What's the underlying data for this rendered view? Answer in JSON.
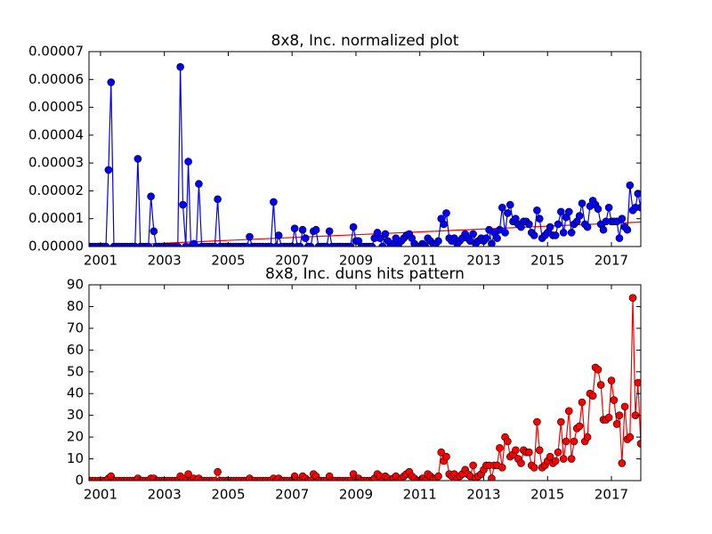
{
  "chart_data": [
    {
      "type": "line",
      "title": "8x8, Inc. normalized plot",
      "color": "#0000ff",
      "markers": true,
      "x": [
        2000.67,
        2000.75,
        2000.83,
        2000.92,
        2001,
        2001.08,
        2001.17,
        2001.25,
        2001.33,
        2001.42,
        2001.5,
        2001.58,
        2001.67,
        2001.75,
        2001.83,
        2001.92,
        2002,
        2002.08,
        2002.17,
        2002.25,
        2002.33,
        2002.42,
        2002.5,
        2002.58,
        2002.67,
        2002.75,
        2002.83,
        2002.92,
        2003,
        2003.08,
        2003.17,
        2003.25,
        2003.33,
        2003.42,
        2003.5,
        2003.58,
        2003.67,
        2003.75,
        2003.83,
        2003.92,
        2004,
        2004.08,
        2004.17,
        2004.25,
        2004.33,
        2004.42,
        2004.5,
        2004.58,
        2004.67,
        2004.75,
        2004.83,
        2004.92,
        2005,
        2005.08,
        2005.17,
        2005.25,
        2005.33,
        2005.42,
        2005.5,
        2005.58,
        2005.67,
        2005.75,
        2005.83,
        2005.92,
        2006,
        2006.08,
        2006.17,
        2006.25,
        2006.33,
        2006.42,
        2006.5,
        2006.58,
        2006.67,
        2006.75,
        2006.83,
        2006.92,
        2007,
        2007.08,
        2007.17,
        2007.25,
        2007.33,
        2007.42,
        2007.5,
        2007.58,
        2007.67,
        2007.75,
        2007.83,
        2007.92,
        2008,
        2008.08,
        2008.17,
        2008.25,
        2008.33,
        2008.42,
        2008.5,
        2008.58,
        2008.67,
        2008.75,
        2008.83,
        2008.92,
        2009,
        2009.08,
        2009.17,
        2009.25,
        2009.33,
        2009.42,
        2009.5,
        2009.58,
        2009.67,
        2009.75,
        2009.83,
        2009.92,
        2010,
        2010.08,
        2010.17,
        2010.25,
        2010.33,
        2010.42,
        2010.5,
        2010.58,
        2010.67,
        2010.75,
        2010.83,
        2010.92,
        2011,
        2011.08,
        2011.17,
        2011.25,
        2011.33,
        2011.42,
        2011.5,
        2011.58,
        2011.67,
        2011.75,
        2011.83,
        2011.92,
        2012,
        2012.08,
        2012.17,
        2012.25,
        2012.33,
        2012.42,
        2012.5,
        2012.58,
        2012.67,
        2012.75,
        2012.83,
        2012.92,
        2013,
        2013.08,
        2013.17,
        2013.25,
        2013.33,
        2013.42,
        2013.5,
        2013.58,
        2013.67,
        2013.75,
        2013.83,
        2013.92,
        2014,
        2014.08,
        2014.17,
        2014.25,
        2014.33,
        2014.42,
        2014.5,
        2014.58,
        2014.67,
        2014.75,
        2014.83,
        2014.92,
        2015,
        2015.08,
        2015.17,
        2015.25,
        2015.33,
        2015.42,
        2015.5,
        2015.58,
        2015.67,
        2015.75,
        2015.83,
        2015.92,
        2016,
        2016.08,
        2016.17,
        2016.25,
        2016.33,
        2016.42,
        2016.5,
        2016.58,
        2016.67,
        2016.75,
        2016.83,
        2016.92,
        2017,
        2017.08,
        2017.17,
        2017.25,
        2017.33,
        2017.42,
        2017.5,
        2017.58,
        2017.67,
        2017.75,
        2017.83,
        2017.92
      ],
      "values": [
        0,
        0,
        0,
        0,
        0,
        0,
        0,
        2.75e-05,
        5.9e-05,
        0,
        0,
        0,
        0,
        0,
        0,
        0,
        0,
        0,
        3.15e-05,
        0,
        0,
        0,
        0,
        1.8e-05,
        5.5e-06,
        0,
        0,
        0,
        0,
        0,
        0,
        0,
        0,
        0,
        6.45e-05,
        1.5e-05,
        0,
        3.05e-05,
        0,
        1e-06,
        0,
        2.25e-05,
        0,
        0,
        0,
        0,
        0,
        0,
        1.7e-05,
        0,
        0,
        0,
        0,
        0,
        0,
        0,
        0,
        0,
        0,
        0,
        3.5e-06,
        0,
        0,
        0,
        0,
        0,
        0,
        0,
        0,
        1.6e-05,
        0,
        4e-06,
        0,
        0,
        0,
        0,
        0,
        6.5e-06,
        0,
        0,
        6e-06,
        3e-06,
        0,
        0,
        5.5e-06,
        6e-06,
        0,
        0,
        0,
        0,
        5.5e-06,
        0,
        0,
        0,
        0,
        0,
        0,
        0,
        0,
        7e-06,
        2e-06,
        2e-06,
        0,
        0,
        0,
        0,
        0,
        3e-06,
        5e-06,
        3e-06,
        0,
        4.5e-06,
        2e-06,
        0,
        1e-06,
        3e-06,
        0,
        2e-06,
        3e-06,
        4e-06,
        4.5e-06,
        3e-06,
        1e-06,
        0,
        0,
        1e-06,
        0,
        3e-06,
        2e-06,
        1e-06,
        1e-06,
        2e-06,
        1e-05,
        8e-06,
        1.2e-05,
        3e-06,
        2e-06,
        3e-06,
        1e-06,
        2e-06,
        3e-06,
        4.5e-06,
        3e-06,
        2e-06,
        4.5e-06,
        1e-06,
        2e-06,
        3e-06,
        2e-06,
        3e-06,
        6e-06,
        1e-06,
        5e-06,
        3e-06,
        6e-06,
        1.4e-05,
        5e-06,
        1.2e-05,
        1.5e-05,
        9e-06,
        1e-05,
        8e-06,
        7e-06,
        9e-06,
        9e-06,
        8e-06,
        5e-06,
        4e-06,
        1.3e-05,
        1e-05,
        3e-06,
        4e-06,
        5e-06,
        7e-06,
        4e-06,
        4e-06,
        8e-06,
        1.25e-05,
        5e-06,
        1.05e-05,
        1.25e-05,
        5e-06,
        8e-06,
        9e-06,
        1.1e-05,
        1.55e-05,
        8e-06,
        7e-06,
        1.45e-05,
        1.65e-05,
        1.5e-05,
        1.35e-05,
        8e-06,
        6e-06,
        9e-06,
        1.4e-05,
        9e-06,
        9e-06,
        9e-06,
        3e-06,
        1e-05,
        7e-06,
        6e-06,
        2.2e-05,
        1.3e-05,
        1.4e-05,
        1.9e-05,
        1.4e-05
      ],
      "trend": {
        "color": "#ff0000",
        "x": [
          2000.67,
          2017.92
        ],
        "values": [
          0,
          8.8e-06
        ]
      },
      "xlim": [
        2000.64,
        2017.92
      ],
      "xticks": [
        2001,
        2003,
        2005,
        2007,
        2009,
        2011,
        2013,
        2015,
        2017
      ],
      "ylim": [
        0,
        7e-05
      ],
      "yticks": [
        {
          "value": 0,
          "label": "0.00000"
        },
        {
          "value": 1e-05,
          "label": "0.00001"
        },
        {
          "value": 2e-05,
          "label": "0.00002"
        },
        {
          "value": 3e-05,
          "label": "0.00003"
        },
        {
          "value": 4e-05,
          "label": "0.00004"
        },
        {
          "value": 5e-05,
          "label": "0.00005"
        },
        {
          "value": 6e-05,
          "label": "0.00006"
        },
        {
          "value": 7e-05,
          "label": "0.00007"
        }
      ]
    },
    {
      "type": "line",
      "title": "8x8, Inc. duns hits pattern",
      "color": "#ff0000",
      "markers": true,
      "x": [
        2000.67,
        2000.75,
        2000.83,
        2000.92,
        2001,
        2001.08,
        2001.17,
        2001.25,
        2001.33,
        2001.42,
        2001.5,
        2001.58,
        2001.67,
        2001.75,
        2001.83,
        2001.92,
        2002,
        2002.08,
        2002.17,
        2002.25,
        2002.33,
        2002.42,
        2002.5,
        2002.58,
        2002.67,
        2002.75,
        2002.83,
        2002.92,
        2003,
        2003.08,
        2003.17,
        2003.25,
        2003.33,
        2003.42,
        2003.5,
        2003.58,
        2003.67,
        2003.75,
        2003.83,
        2003.92,
        2004,
        2004.08,
        2004.17,
        2004.25,
        2004.33,
        2004.42,
        2004.5,
        2004.58,
        2004.67,
        2004.75,
        2004.83,
        2004.92,
        2005,
        2005.08,
        2005.17,
        2005.25,
        2005.33,
        2005.42,
        2005.5,
        2005.58,
        2005.67,
        2005.75,
        2005.83,
        2005.92,
        2006,
        2006.08,
        2006.17,
        2006.25,
        2006.33,
        2006.42,
        2006.5,
        2006.58,
        2006.67,
        2006.75,
        2006.83,
        2006.92,
        2007,
        2007.08,
        2007.17,
        2007.25,
        2007.33,
        2007.42,
        2007.5,
        2007.58,
        2007.67,
        2007.75,
        2007.83,
        2007.92,
        2008,
        2008.08,
        2008.17,
        2008.25,
        2008.33,
        2008.42,
        2008.5,
        2008.58,
        2008.67,
        2008.75,
        2008.83,
        2008.92,
        2009,
        2009.08,
        2009.17,
        2009.25,
        2009.33,
        2009.42,
        2009.5,
        2009.58,
        2009.67,
        2009.75,
        2009.83,
        2009.92,
        2010,
        2010.08,
        2010.17,
        2010.25,
        2010.33,
        2010.42,
        2010.5,
        2010.58,
        2010.67,
        2010.75,
        2010.83,
        2010.92,
        2011,
        2011.08,
        2011.17,
        2011.25,
        2011.33,
        2011.42,
        2011.5,
        2011.58,
        2011.67,
        2011.75,
        2011.83,
        2011.92,
        2012,
        2012.08,
        2012.17,
        2012.25,
        2012.33,
        2012.42,
        2012.5,
        2012.58,
        2012.67,
        2012.75,
        2012.83,
        2012.92,
        2013,
        2013.08,
        2013.17,
        2013.25,
        2013.33,
        2013.42,
        2013.5,
        2013.58,
        2013.67,
        2013.75,
        2013.83,
        2013.92,
        2014,
        2014.08,
        2014.17,
        2014.25,
        2014.33,
        2014.42,
        2014.5,
        2014.58,
        2014.67,
        2014.75,
        2014.83,
        2014.92,
        2015,
        2015.08,
        2015.17,
        2015.25,
        2015.33,
        2015.42,
        2015.5,
        2015.58,
        2015.67,
        2015.75,
        2015.83,
        2015.92,
        2016,
        2016.08,
        2016.17,
        2016.25,
        2016.33,
        2016.42,
        2016.5,
        2016.58,
        2016.67,
        2016.75,
        2016.83,
        2016.92,
        2017,
        2017.08,
        2017.17,
        2017.25,
        2017.33,
        2017.42,
        2017.5,
        2017.58,
        2017.67,
        2017.75,
        2017.83,
        2017.92
      ],
      "values": [
        0,
        0,
        0,
        0,
        0,
        0,
        0,
        1,
        2,
        0,
        0,
        0,
        0,
        0,
        0,
        0,
        0,
        0,
        1,
        0,
        0,
        0,
        0,
        1,
        1,
        0,
        0,
        0,
        0,
        0,
        0,
        0,
        0,
        0,
        2,
        1,
        0,
        3,
        0,
        1,
        0,
        1,
        0,
        0,
        0,
        0,
        0,
        0,
        4,
        0,
        0,
        0,
        0,
        0,
        0,
        0,
        0,
        0,
        0,
        0,
        1,
        0,
        0,
        0,
        0,
        0,
        0,
        0,
        0,
        1,
        0,
        1,
        0,
        0,
        0,
        0,
        0,
        2,
        0,
        0,
        2,
        1,
        0,
        0,
        3,
        2,
        0,
        0,
        0,
        0,
        2,
        0,
        0,
        0,
        0,
        0,
        0,
        0,
        0,
        3,
        1,
        1,
        0,
        0,
        0,
        0,
        0,
        1,
        3,
        2,
        0,
        2,
        1,
        0,
        1,
        2,
        0,
        1,
        2,
        3,
        4,
        2,
        1,
        0,
        0,
        1,
        0,
        3,
        2,
        1,
        1,
        2,
        13,
        9,
        11,
        3,
        2,
        3,
        1,
        2,
        3,
        5,
        3,
        2,
        7,
        1,
        2,
        3,
        5,
        7,
        7,
        1,
        7,
        7,
        15,
        6,
        20,
        18,
        11,
        12,
        14,
        10,
        8,
        14,
        13,
        13,
        7,
        6,
        27,
        14,
        6,
        7,
        9,
        11,
        8,
        9,
        13,
        27,
        10,
        18,
        32,
        10,
        18,
        24,
        25,
        36,
        18,
        20,
        40,
        39,
        52,
        51,
        44,
        28,
        28,
        29,
        46,
        37,
        26,
        30,
        8,
        34,
        19,
        20,
        84,
        30,
        45,
        17
      ],
      "xlim": [
        2000.64,
        2017.92
      ],
      "xticks": [
        2001,
        2003,
        2005,
        2007,
        2009,
        2011,
        2013,
        2015,
        2017
      ],
      "ylim": [
        0,
        90
      ],
      "yticks": [
        0,
        10,
        20,
        30,
        40,
        50,
        60,
        70,
        80,
        90
      ]
    }
  ]
}
